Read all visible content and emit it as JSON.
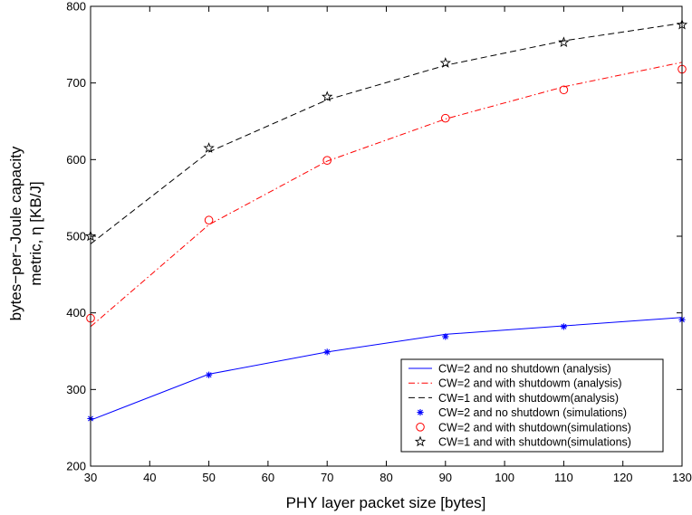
{
  "chart_data": {
    "type": "line",
    "xlabel": "PHY layer packet size [bytes]",
    "ylabel_lines": [
      "bytes−per−Joule capacity",
      "metric, η [KB/J]"
    ],
    "xlim": [
      30,
      130
    ],
    "ylim": [
      200,
      800
    ],
    "xticks": [
      30,
      40,
      50,
      60,
      70,
      80,
      90,
      100,
      110,
      120,
      130
    ],
    "yticks": [
      200,
      300,
      400,
      500,
      600,
      700,
      800
    ],
    "grid": false,
    "legend_position": "bottom-right",
    "x": [
      30,
      50,
      70,
      90,
      110,
      130
    ],
    "series": [
      {
        "name": "CW=2 and no shutdown (analysis)",
        "kind": "line",
        "style": "solid",
        "color": "#0000ff",
        "values": [
          260,
          320,
          349,
          372,
          383,
          394
        ]
      },
      {
        "name": "CW=2 and with shutdowm (analysis)",
        "kind": "line",
        "style": "dashdot",
        "color": "#ff0000",
        "values": [
          382,
          515,
          598,
          653,
          695,
          727
        ]
      },
      {
        "name": "CW=1 and with shutdowm(analysis)",
        "kind": "line",
        "style": "dashed",
        "color": "#000000",
        "values": [
          490,
          610,
          678,
          723,
          755,
          778
        ]
      },
      {
        "name": "CW=2 and no shutdown (simulations)",
        "kind": "marker",
        "marker": "asterisk",
        "color": "#0000ff",
        "values": [
          262,
          319,
          349,
          369,
          382,
          391
        ]
      },
      {
        "name": "CW=2 and with shutdown(simulations)",
        "kind": "marker",
        "marker": "circle",
        "color": "#ff0000",
        "values": [
          393,
          521,
          599,
          654,
          691,
          718
        ]
      },
      {
        "name": "CW=1 and with shutdown(simulations)",
        "kind": "marker",
        "marker": "star",
        "color": "#000000",
        "values": [
          500,
          615,
          682,
          726,
          753,
          776
        ]
      }
    ]
  }
}
